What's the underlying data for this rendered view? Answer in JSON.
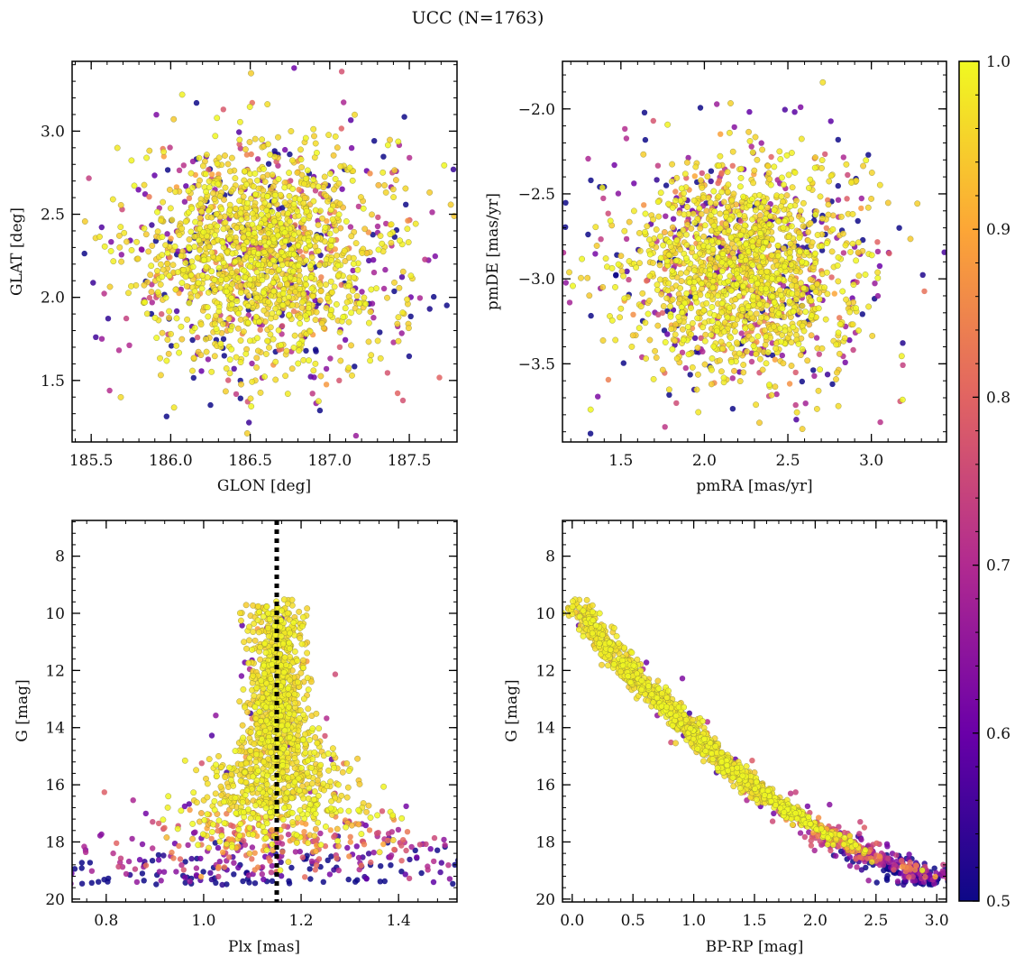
{
  "figure": {
    "title": "UCC (N=1763)"
  },
  "chart_data": [
    {
      "type": "scatter",
      "panel": "top-left",
      "xlabel": "GLON [deg]",
      "ylabel": "GLAT [deg]",
      "xlim": [
        185.38,
        187.8
      ],
      "ylim": [
        1.13,
        3.42
      ],
      "xticks": [
        "185.5",
        "186.0",
        "186.5",
        "187.0",
        "187.5"
      ],
      "yticks": [
        "1.5",
        "2.0",
        "2.5",
        "3.0"
      ],
      "distribution": {
        "center": [
          186.58,
          2.25
        ],
        "spread": [
          0.38,
          0.33
        ]
      },
      "color_value": "membership probability",
      "n_points": 1763
    },
    {
      "type": "scatter",
      "panel": "top-right",
      "xlabel": "pmRA [mas/yr]",
      "ylabel": "pmDE [mas/yr]",
      "xlim": [
        1.15,
        3.45
      ],
      "ylim": [
        -3.96,
        -1.72
      ],
      "xticks": [
        "1.5",
        "2.0",
        "2.5",
        "3.0"
      ],
      "yticks": [
        "−2.0",
        "−2.5",
        "−3.0",
        "−3.5"
      ],
      "distribution": {
        "center": [
          2.25,
          -2.95
        ],
        "spread": [
          0.33,
          0.3
        ]
      },
      "n_points": 1763
    },
    {
      "type": "scatter",
      "panel": "bottom-left",
      "xlabel": "Plx [mas]",
      "ylabel": "G [mag]",
      "xlim": [
        0.73,
        1.52
      ],
      "ylim": [
        20.1,
        6.75
      ],
      "inverted_y": true,
      "xticks": [
        "0.8",
        "1.0",
        "1.2",
        "1.4"
      ],
      "yticks": [
        "8",
        "10",
        "12",
        "14",
        "16",
        "18",
        "20"
      ],
      "reference_line": {
        "x": 1.15,
        "style": "dotted",
        "color": "#000000"
      },
      "n_points": 1763
    },
    {
      "type": "scatter",
      "panel": "bottom-right",
      "xlabel": "BP-RP [mag]",
      "ylabel": "G [mag]",
      "xlim": [
        -0.08,
        3.08
      ],
      "ylim": [
        20.1,
        6.75
      ],
      "inverted_y": true,
      "xticks": [
        "0.0",
        "0.5",
        "1.0",
        "1.5",
        "2.0",
        "2.5",
        "3.0"
      ],
      "yticks": [
        "8",
        "10",
        "12",
        "14",
        "16",
        "18",
        "20"
      ],
      "sequence": [
        [
          0.05,
          9.8
        ],
        [
          0.25,
          10.9
        ],
        [
          0.5,
          12.2
        ],
        [
          0.8,
          13.3
        ],
        [
          1.0,
          14.2
        ],
        [
          1.3,
          15.4
        ],
        [
          1.6,
          16.4
        ],
        [
          2.0,
          17.5
        ],
        [
          2.4,
          18.4
        ],
        [
          2.9,
          19.1
        ]
      ],
      "n_points": 1763
    }
  ],
  "colorbar": {
    "vmin": 0.5,
    "vmax": 1.0,
    "ticks": [
      "0.5",
      "0.6",
      "0.7",
      "0.8",
      "0.9",
      "1.0"
    ],
    "colormap": [
      "#0d0887",
      "#6a00a8",
      "#b12a90",
      "#e16462",
      "#fca636",
      "#f0f921"
    ]
  }
}
